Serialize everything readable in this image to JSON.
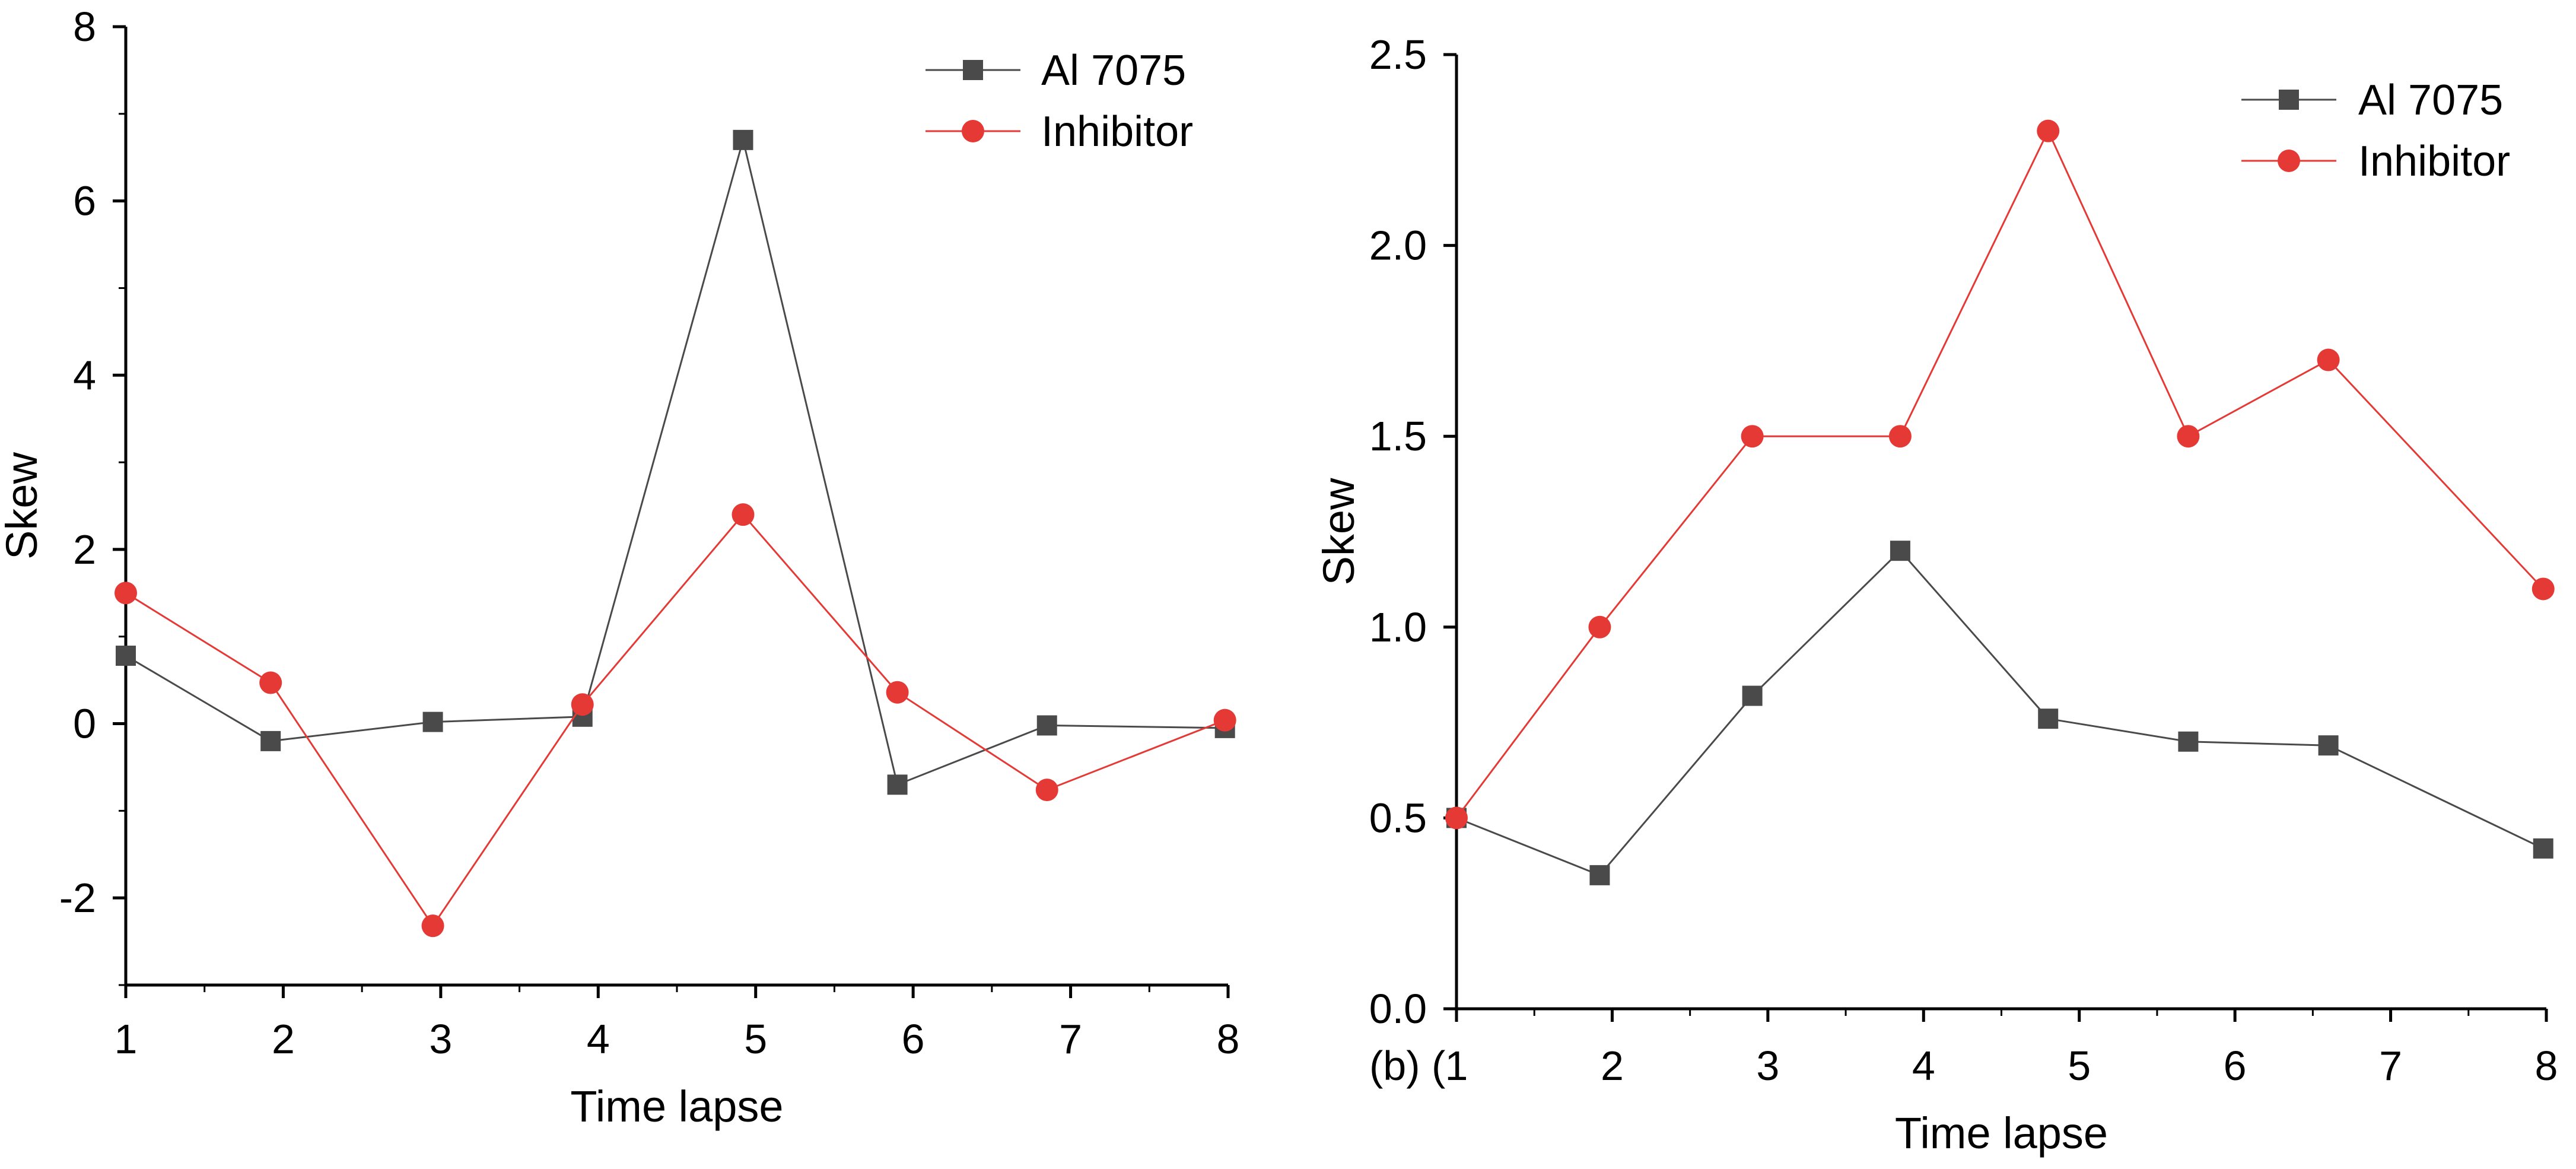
{
  "chart_data": [
    {
      "type": "line",
      "panel": "a",
      "categories": [
        "1",
        "2",
        "3",
        "4",
        "5",
        "6",
        "7",
        "8"
      ],
      "x": [
        1,
        2,
        3,
        4,
        5,
        6,
        7,
        8
      ],
      "ylabel": "Skew",
      "xlabel": "Time lapse",
      "ylim": [
        -3,
        8
      ],
      "yticks": [
        -2,
        0,
        2,
        4,
        6,
        8
      ],
      "ytick_labels": [
        "-2",
        "0",
        "2",
        "4",
        "6",
        "8"
      ],
      "legend_position": "top-right",
      "series": [
        {
          "name": "Al 7075",
          "color": "#4a4a4a",
          "marker": "square",
          "x": [
            1,
            1.92,
            2.95,
            3.9,
            4.92,
            5.9,
            6.85,
            7.98
          ],
          "values": [
            0.78,
            -0.2,
            0.02,
            0.08,
            6.7,
            -0.7,
            -0.02,
            -0.05
          ]
        },
        {
          "name": "Inhibitor",
          "color": "#e53935",
          "marker": "circle",
          "x": [
            1,
            1.92,
            2.95,
            3.9,
            4.92,
            5.9,
            6.85,
            7.98
          ],
          "values": [
            1.5,
            0.47,
            -2.32,
            0.22,
            2.4,
            0.36,
            -0.76,
            0.04
          ]
        }
      ]
    },
    {
      "type": "line",
      "panel": "b",
      "panel_label": "(b) (",
      "categories": [
        "1",
        "2",
        "3",
        "4",
        "5",
        "6",
        "7",
        "8"
      ],
      "x": [
        1,
        2,
        3,
        4,
        5,
        6,
        7,
        8
      ],
      "ylabel": "Skew",
      "xlabel": "Time lapse",
      "ylim": [
        0,
        2.5
      ],
      "yticks": [
        0,
        0.5,
        1.0,
        1.5,
        2.0,
        2.5
      ],
      "ytick_labels": [
        "0.0",
        "0.5",
        "1.0",
        "1.5",
        "2.0",
        "2.5"
      ],
      "legend_position": "top-right",
      "series": [
        {
          "name": "Al 7075",
          "color": "#4a4a4a",
          "marker": "square",
          "x": [
            1,
            1.92,
            2.9,
            3.85,
            4.8,
            5.7,
            6.6,
            7.98
          ],
          "values": [
            0.5,
            0.35,
            0.82,
            1.2,
            0.76,
            0.7,
            0.69,
            0.42
          ]
        },
        {
          "name": "Inhibitor",
          "color": "#e53935",
          "marker": "circle",
          "x": [
            1,
            1.92,
            2.9,
            3.85,
            4.8,
            5.7,
            6.6,
            7.98
          ],
          "values": [
            0.5,
            1.0,
            1.5,
            1.5,
            2.3,
            1.5,
            1.7,
            1.1
          ]
        }
      ]
    }
  ]
}
